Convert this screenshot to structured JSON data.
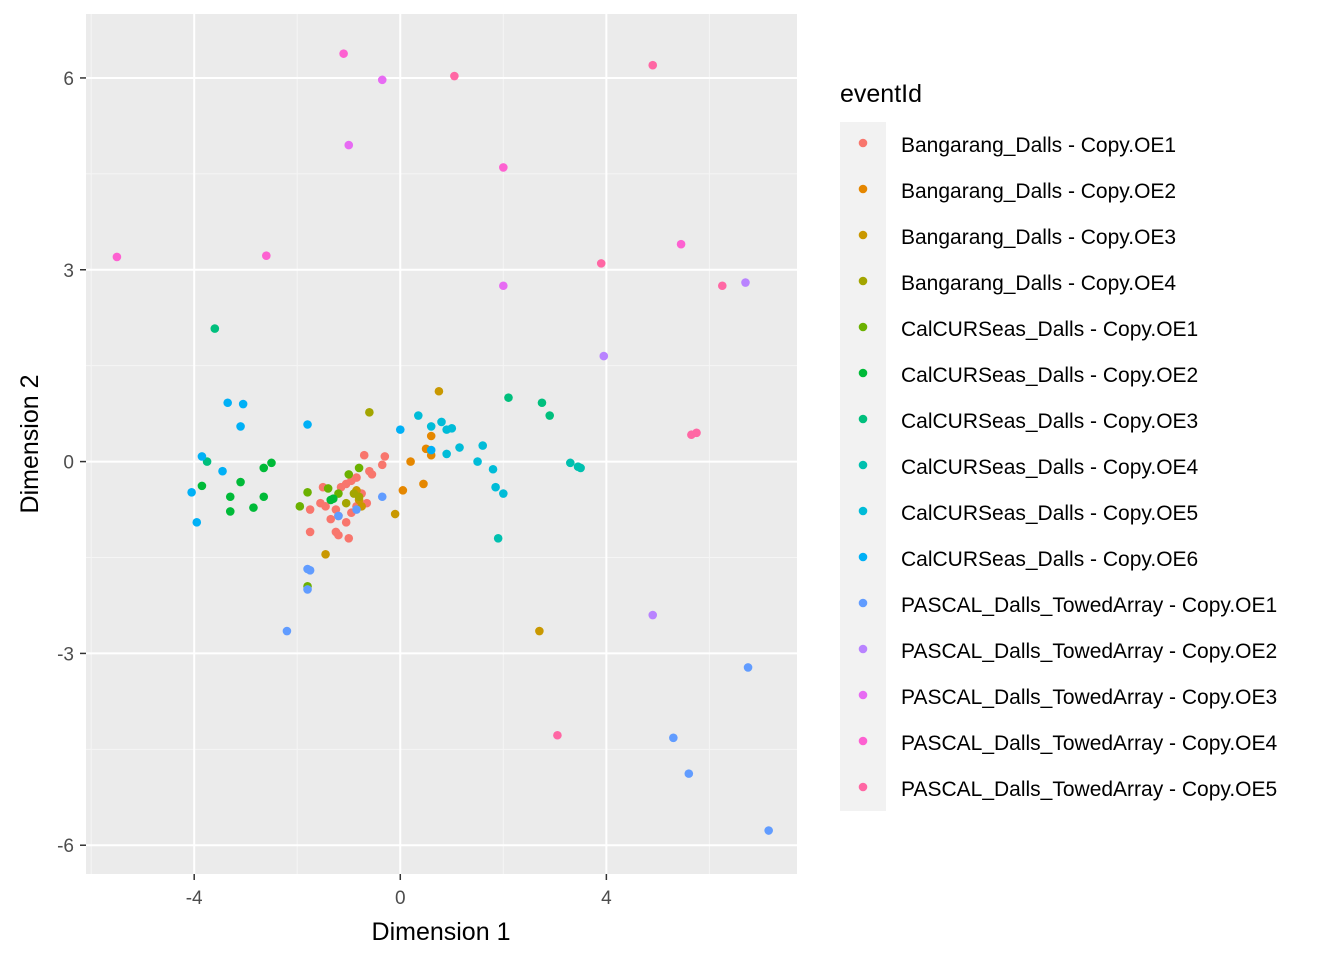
{
  "chart_data": {
    "type": "scatter",
    "xlabel": "Dimension 1",
    "ylabel": "Dimension 2",
    "xlim": [
      -6.1,
      7.7
    ],
    "ylim": [
      -6.45,
      7.0
    ],
    "xticks": [
      -4,
      0,
      4
    ],
    "yticks": [
      -6,
      -3,
      0,
      3,
      6
    ],
    "x_tick_labels": [
      "-4",
      "0",
      "4"
    ],
    "y_tick_labels": [
      "-6",
      "-3",
      "0",
      "3",
      "6"
    ],
    "grid": true,
    "legend": {
      "title": "eventId",
      "position": "right"
    },
    "series": [
      {
        "name": "Bangarang_Dalls - Copy.OE1",
        "color": "#F8766D",
        "points": [
          [
            -0.7,
            0.1
          ],
          [
            -0.6,
            -0.15
          ],
          [
            -0.55,
            -0.2
          ],
          [
            -0.35,
            -0.05
          ],
          [
            -0.3,
            0.08
          ],
          [
            -0.85,
            -0.25
          ],
          [
            -0.95,
            -0.3
          ],
          [
            -1.05,
            -0.35
          ],
          [
            -1.15,
            -0.4
          ],
          [
            -0.75,
            -0.5
          ],
          [
            -0.65,
            -0.65
          ],
          [
            -0.85,
            -0.7
          ],
          [
            -0.95,
            -0.8
          ],
          [
            -1.05,
            -0.95
          ],
          [
            -1.2,
            -0.85
          ],
          [
            -1.25,
            -0.75
          ],
          [
            -1.35,
            -0.9
          ],
          [
            -1.45,
            -0.7
          ],
          [
            -1.55,
            -0.65
          ],
          [
            -1.5,
            -0.4
          ],
          [
            -1.75,
            -0.75
          ],
          [
            -1.75,
            -1.1
          ],
          [
            -1.25,
            -1.1
          ],
          [
            -1.2,
            -1.15
          ],
          [
            -1.0,
            -1.2
          ]
        ]
      },
      {
        "name": "Bangarang_Dalls - Copy.OE2",
        "color": "#E58700",
        "points": [
          [
            0.6,
            0.4
          ],
          [
            0.5,
            0.2
          ],
          [
            0.6,
            0.1
          ],
          [
            0.2,
            0.0
          ],
          [
            0.05,
            -0.45
          ],
          [
            0.45,
            -0.35
          ]
        ]
      },
      {
        "name": "Bangarang_Dalls - Copy.OE3",
        "color": "#C99800",
        "points": [
          [
            0.75,
            1.1
          ],
          [
            -0.1,
            -0.82
          ],
          [
            -0.85,
            -0.45
          ],
          [
            -0.8,
            -0.6
          ],
          [
            -0.75,
            -0.7
          ],
          [
            -1.45,
            -1.45
          ],
          [
            2.7,
            -2.65
          ]
        ]
      },
      {
        "name": "Bangarang_Dalls - Copy.OE4",
        "color": "#A3A500",
        "points": [
          [
            -0.6,
            0.77
          ],
          [
            -0.9,
            -0.5
          ],
          [
            -0.8,
            -0.55
          ],
          [
            -1.05,
            -0.65
          ]
        ]
      },
      {
        "name": "CalCURSeas_Dalls - Copy.OE1",
        "color": "#6BB100",
        "points": [
          [
            -1.8,
            -0.48
          ],
          [
            -1.95,
            -0.7
          ],
          [
            -1.4,
            -0.42
          ],
          [
            -1.2,
            -0.5
          ],
          [
            -1.0,
            -0.2
          ],
          [
            -0.8,
            -0.1
          ],
          [
            -1.8,
            -1.95
          ]
        ]
      },
      {
        "name": "CalCURSeas_Dalls - Copy.OE2",
        "color": "#00BA38",
        "points": [
          [
            -2.5,
            -0.02
          ],
          [
            -2.65,
            -0.1
          ],
          [
            -2.65,
            -0.55
          ],
          [
            -2.85,
            -0.72
          ],
          [
            -3.1,
            -0.32
          ],
          [
            -3.3,
            -0.55
          ],
          [
            -3.3,
            -0.78
          ],
          [
            -3.85,
            -0.38
          ],
          [
            -1.3,
            -0.58
          ],
          [
            -1.35,
            -0.6
          ]
        ]
      },
      {
        "name": "CalCURSeas_Dalls - Copy.OE3",
        "color": "#00BF7D",
        "points": [
          [
            -3.6,
            2.08
          ],
          [
            -3.75,
            0.0
          ],
          [
            2.1,
            1.0
          ],
          [
            2.75,
            0.92
          ],
          [
            2.9,
            0.72
          ]
        ]
      },
      {
        "name": "CalCURSeas_Dalls - Copy.OE4",
        "color": "#00C0AF",
        "points": [
          [
            3.3,
            -0.02
          ],
          [
            3.45,
            -0.08
          ],
          [
            3.5,
            -0.1
          ],
          [
            1.9,
            -1.2
          ]
        ]
      },
      {
        "name": "CalCURSeas_Dalls - Copy.OE5",
        "color": "#00BCD8",
        "points": [
          [
            0.35,
            0.72
          ],
          [
            0.6,
            0.55
          ],
          [
            0.8,
            0.62
          ],
          [
            0.9,
            0.5
          ],
          [
            1.0,
            0.52
          ],
          [
            0.9,
            0.12
          ],
          [
            1.15,
            0.22
          ],
          [
            1.5,
            0.0
          ],
          [
            1.6,
            0.25
          ],
          [
            1.8,
            -0.12
          ],
          [
            1.85,
            -0.4
          ],
          [
            2.0,
            -0.5
          ]
        ]
      },
      {
        "name": "CalCURSeas_Dalls - Copy.OE6",
        "color": "#00B0F6",
        "points": [
          [
            -3.35,
            0.92
          ],
          [
            -3.05,
            0.9
          ],
          [
            -3.1,
            0.55
          ],
          [
            -1.8,
            0.58
          ],
          [
            -3.85,
            0.08
          ],
          [
            -3.45,
            -0.15
          ],
          [
            -4.05,
            -0.48
          ],
          [
            -3.95,
            -0.95
          ],
          [
            0.0,
            0.5
          ],
          [
            0.6,
            0.18
          ]
        ]
      },
      {
        "name": "PASCAL_Dalls_TowedArray - Copy.OE1",
        "color": "#619CFF",
        "points": [
          [
            -1.8,
            -1.68
          ],
          [
            -1.75,
            -1.7
          ],
          [
            -1.8,
            -2.0
          ],
          [
            -2.2,
            -2.65
          ],
          [
            -0.35,
            -0.55
          ],
          [
            -0.85,
            -0.75
          ],
          [
            -1.2,
            -0.85
          ],
          [
            6.75,
            -3.22
          ],
          [
            5.3,
            -4.32
          ],
          [
            5.6,
            -4.88
          ],
          [
            7.15,
            -5.77
          ]
        ]
      },
      {
        "name": "PASCAL_Dalls_TowedArray - Copy.OE2",
        "color": "#B983FF",
        "points": [
          [
            6.7,
            2.8
          ],
          [
            3.95,
            1.65
          ],
          [
            4.9,
            -2.4
          ]
        ]
      },
      {
        "name": "PASCAL_Dalls_TowedArray - Copy.OE3",
        "color": "#E76BF3",
        "points": [
          [
            -0.35,
            5.97
          ],
          [
            -1.0,
            4.95
          ],
          [
            2.0,
            2.75
          ]
        ]
      },
      {
        "name": "PASCAL_Dalls_TowedArray - Copy.OE4",
        "color": "#FD61D1",
        "points": [
          [
            -5.5,
            3.2
          ],
          [
            -2.6,
            3.22
          ],
          [
            -1.1,
            6.38
          ],
          [
            2.0,
            4.6
          ],
          [
            5.45,
            3.4
          ]
        ]
      },
      {
        "name": "PASCAL_Dalls_TowedArray - Copy.OE5",
        "color": "#FF67A4",
        "points": [
          [
            1.05,
            6.03
          ],
          [
            4.9,
            6.2
          ],
          [
            3.9,
            3.1
          ],
          [
            6.25,
            2.75
          ],
          [
            5.65,
            0.42
          ],
          [
            5.75,
            0.45
          ],
          [
            3.05,
            -4.28
          ]
        ]
      }
    ]
  }
}
